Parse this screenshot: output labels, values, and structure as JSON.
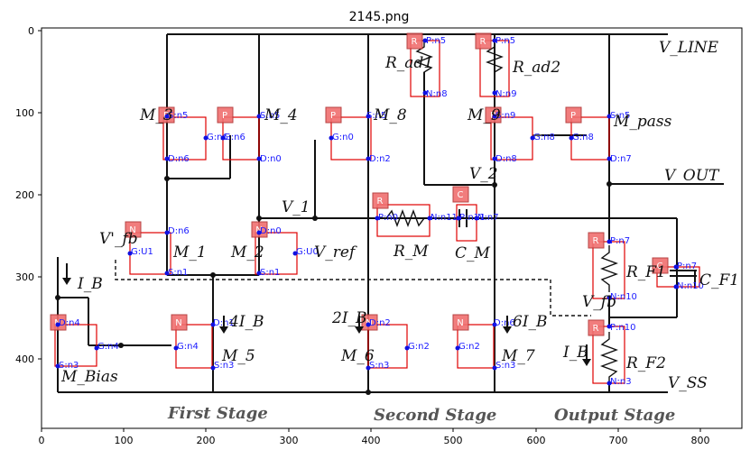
{
  "title": "2145.png",
  "axes": {
    "x_ticks": [
      "0",
      "100",
      "200",
      "300",
      "400",
      "500",
      "600",
      "700",
      "800"
    ],
    "y_ticks": [
      "0",
      "100",
      "200",
      "300",
      "400"
    ]
  },
  "stages": [
    "First Stage",
    "Second Stage",
    "Output Stage"
  ],
  "rails": {
    "vline": "V_LINE",
    "vout": "V_OUT",
    "vss": "V_SS"
  },
  "labels": {
    "m1": "M_1",
    "m2": "M_2",
    "m3": "M_3",
    "m4": "M_4",
    "m5": "M_5",
    "m6": "M_6",
    "m7": "M_7",
    "m8": "M_8",
    "m9": "M_9",
    "mpass": "M_pass",
    "mbias": "M_Bias",
    "rad1": "R_ad1",
    "rad2": "R_ad2",
    "rm": "R_M",
    "cm": "C_M",
    "rf1": "R_F1",
    "rf2": "R_F2",
    "cf1": "C_F1",
    "v1": "V_1",
    "v2": "V_2",
    "vfb_prime": "V'_fb",
    "vref": "V_ref",
    "vfb": "V_fb",
    "ib": "I_B",
    "i4b": "4I_B",
    "i2b": "2I_B",
    "i6b": "6I_B",
    "ib_out": "I_B"
  },
  "components": [
    {
      "type": "R",
      "pins": [
        "P:n5",
        "N:n8"
      ]
    },
    {
      "type": "R",
      "pins": [
        "P:n5",
        "N:n9"
      ]
    },
    {
      "type": "P",
      "pins": [
        "S:n5",
        "G:n6",
        "D:n6"
      ]
    },
    {
      "type": "P",
      "pins": [
        "S:n5",
        "G:n6",
        "D:n0"
      ]
    },
    {
      "type": "P",
      "pins": [
        "S:n5",
        "G:n0",
        "D:n2"
      ]
    },
    {
      "type": "P",
      "pins": [
        "S:n9",
        "G:n8",
        "D:n8"
      ]
    },
    {
      "type": "P",
      "pins": [
        "S:n5",
        "G:n8",
        "D:n7"
      ]
    },
    {
      "type": "R",
      "pins": [
        "P:n0",
        "N:n11"
      ]
    },
    {
      "type": "C",
      "pins": [
        "P:n11",
        "N:n7"
      ]
    },
    {
      "type": "N",
      "pins": [
        "D:n6",
        "G:U1",
        "S:n1"
      ]
    },
    {
      "type": "N",
      "pins": [
        "D:n0",
        "G:U0",
        "S:n1"
      ]
    },
    {
      "type": "R",
      "pins": [
        "P:n7",
        "N:n10"
      ]
    },
    {
      "type": "C",
      "pins": [
        "P:n7",
        "N:n10"
      ]
    },
    {
      "type": "N",
      "pins": [
        "D:n4",
        "G:n4",
        "S:n3"
      ]
    },
    {
      "type": "N",
      "pins": [
        "D:n1",
        "G:n4",
        "S:n3"
      ]
    },
    {
      "type": "N",
      "pins": [
        "D:n2",
        "G:n2",
        "S:n3"
      ]
    },
    {
      "type": "N",
      "pins": [
        "D:n6",
        "G:n2",
        "S:n3"
      ]
    },
    {
      "type": "R",
      "pins": [
        "P:n10",
        "N:n3"
      ]
    }
  ]
}
